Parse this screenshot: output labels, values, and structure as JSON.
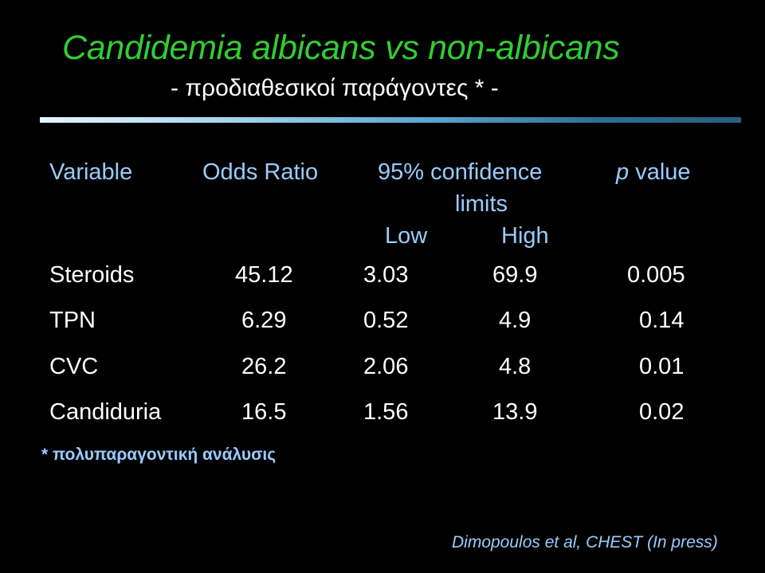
{
  "title": "Candidemia albicans  vs non-albicans",
  "subtitle": "- προδιαθεσικοί παράγοντες * -",
  "table": {
    "headers": {
      "variable": "Variable",
      "odds_ratio": "Odds Ratio",
      "confidence_line1": "95% confidence",
      "confidence_line2": "limits",
      "low": "Low",
      "high": "High",
      "p_value_italic": "p",
      "p_value_rest": "value"
    },
    "rows": [
      {
        "variable": "Steroids",
        "odds_ratio": "45.12",
        "low": "3.03",
        "high": "69.9",
        "p_value": "0.005"
      },
      {
        "variable": "TPN",
        "odds_ratio": "6.29",
        "low": "0.52",
        "high": "4.9",
        "p_value": "0.14"
      },
      {
        "variable": "CVC",
        "odds_ratio": "26.2",
        "low": "2.06",
        "high": "4.8",
        "p_value": "0.01"
      },
      {
        "variable": "Candiduria",
        "odds_ratio": "16.5",
        "low": "1.56",
        "high": "13.9",
        "p_value": "0.02"
      }
    ]
  },
  "footnote": "* πολυπαραγοντική ανάλυσις",
  "citation": "Dimopoulos et al,  CHEST  (In press)",
  "colors": {
    "background": "#000000",
    "title": "#33cc33",
    "header_text": "#99ccff",
    "body_text": "#ffffff"
  }
}
